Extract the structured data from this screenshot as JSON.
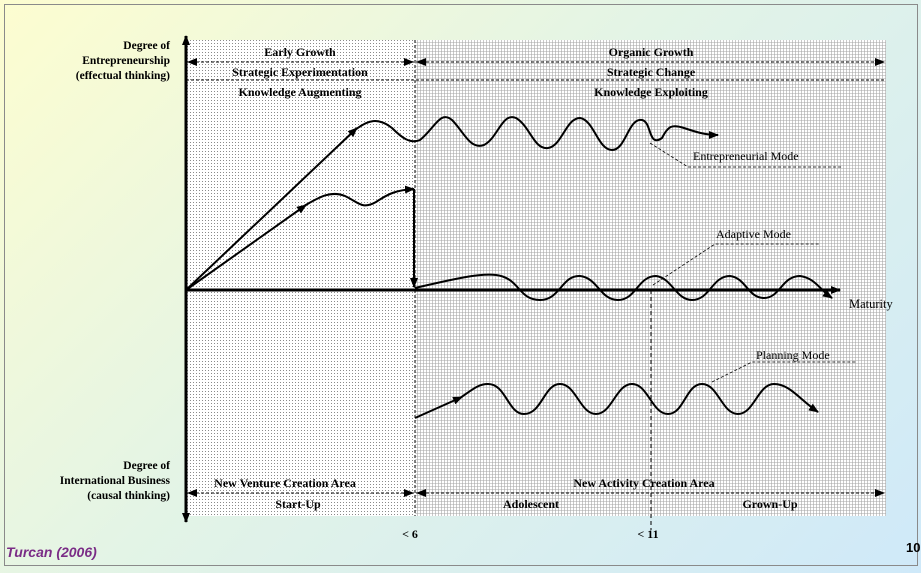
{
  "axes": {
    "y_top_label": "Degree of\nEntrepreneurship\n(effectual thinking)",
    "y_bottom_label": "Degree of\nInternational Business\n(causal thinking)",
    "x_label": "Maturity",
    "x_tick_1": "< 6",
    "x_tick_2": "< 11"
  },
  "top_bands": {
    "left": [
      "Early Growth",
      "Strategic Experimentation",
      "Knowledge Augmenting"
    ],
    "right": [
      "Organic Growth",
      "Strategic Change",
      "Knowledge Exploiting"
    ]
  },
  "bottom_bands": {
    "left_area": "New Venture Creation Area",
    "right_area": "New Activity Creation Area",
    "stage_1": "Start-Up",
    "stage_2": "Adolescent",
    "stage_3": "Grown-Up"
  },
  "modes": {
    "entrepreneurial": "Entrepreneurial Mode",
    "adaptive": "Adaptive Mode",
    "planning": "Planning Mode"
  },
  "footer": {
    "citation": "Turcan (2006)",
    "page_number": "10"
  }
}
